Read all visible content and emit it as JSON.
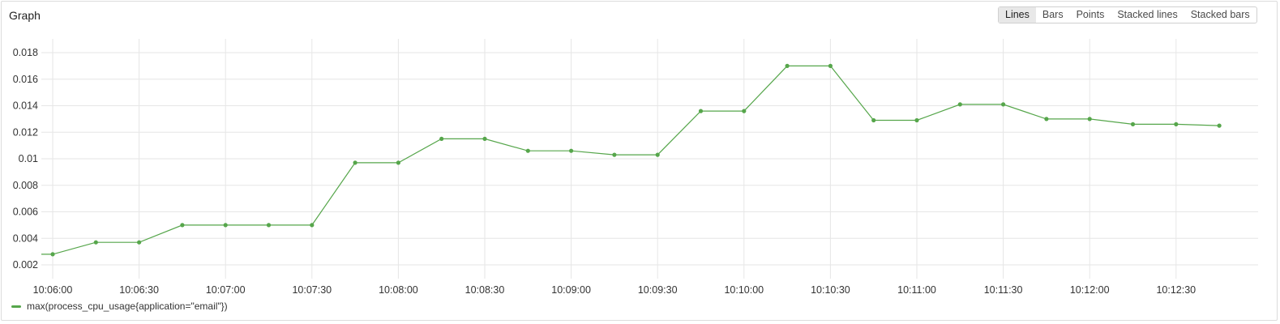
{
  "panel": {
    "title": "Graph",
    "modes": [
      "Lines",
      "Bars",
      "Points",
      "Stacked lines",
      "Stacked bars"
    ],
    "active_mode": "Lines"
  },
  "colors": {
    "series": "#56a64b",
    "grid": "#e6e6e6"
  },
  "chart_data": {
    "type": "line",
    "xlim": [
      "10:06:00",
      "10:13:00"
    ],
    "ylim": [
      0.001,
      0.0195
    ],
    "yticks": [
      0.002,
      0.004,
      0.006,
      0.008,
      0.01,
      0.012,
      0.014,
      0.016,
      0.018
    ],
    "ytick_labels": [
      "0.002",
      "0.004",
      "0.006",
      "0.008",
      "0.01",
      "0.012",
      "0.014",
      "0.016",
      "0.018"
    ],
    "xticks": [
      "10:06:00",
      "10:06:30",
      "10:07:00",
      "10:07:30",
      "10:08:00",
      "10:08:30",
      "10:09:00",
      "10:09:30",
      "10:10:00",
      "10:10:30",
      "10:11:00",
      "10:11:30",
      "10:12:00",
      "10:12:30"
    ],
    "grid": true,
    "legend_position": "bottom-left",
    "series": [
      {
        "name": "max(process_cpu_usage{application=\"email\"})",
        "x": [
          "10:06:00",
          "10:06:15",
          "10:06:30",
          "10:06:45",
          "10:07:00",
          "10:07:15",
          "10:07:30",
          "10:07:45",
          "10:08:00",
          "10:08:15",
          "10:08:30",
          "10:08:45",
          "10:09:00",
          "10:09:15",
          "10:09:30",
          "10:09:45",
          "10:10:00",
          "10:10:15",
          "10:10:30",
          "10:10:45",
          "10:11:00",
          "10:11:15",
          "10:11:30",
          "10:11:45",
          "10:12:00",
          "10:12:15",
          "10:12:30",
          "10:12:45"
        ],
        "values": [
          0.0028,
          0.0037,
          0.0037,
          0.005,
          0.005,
          0.005,
          0.005,
          0.0097,
          0.0097,
          0.0115,
          0.0115,
          0.0106,
          0.0106,
          0.0103,
          0.0103,
          0.0136,
          0.0136,
          0.017,
          0.017,
          0.0129,
          0.0129,
          0.0141,
          0.0141,
          0.013,
          0.013,
          0.0126,
          0.0126,
          0.0125
        ]
      }
    ]
  }
}
